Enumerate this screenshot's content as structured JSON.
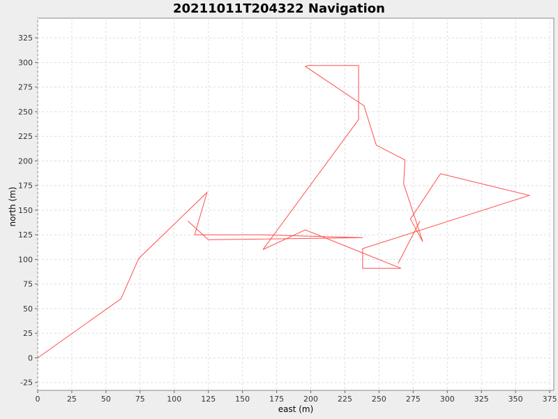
{
  "chart_data": {
    "type": "line",
    "title": "20211011T204322 Navigation",
    "xlabel": "east (m)",
    "ylabel": "north (m)",
    "xlim": [
      0,
      378
    ],
    "ylim": [
      -33,
      345
    ],
    "xticks": [
      0,
      25,
      50,
      75,
      100,
      125,
      150,
      175,
      200,
      225,
      250,
      275,
      300,
      325,
      350,
      375
    ],
    "yticks": [
      -25,
      0,
      25,
      50,
      75,
      100,
      125,
      150,
      175,
      200,
      225,
      250,
      275,
      300,
      325
    ],
    "grid": true,
    "series": [
      {
        "color": "#ff4d4d",
        "x": [
          0,
          61,
          74,
          124,
          115,
          163,
          238,
          125,
          110
        ],
        "y": [
          0,
          60,
          101,
          168,
          125,
          125,
          122,
          120,
          139
        ]
      },
      {
        "color": "#ff4d4d",
        "x": [
          165,
          235,
          235,
          198,
          196,
          239,
          248,
          269,
          268,
          282,
          273,
          295,
          360,
          238,
          238,
          266,
          196,
          165
        ],
        "y": [
          110,
          242,
          297,
          297,
          296,
          256,
          216,
          201,
          177,
          118,
          141,
          187,
          165,
          111,
          91,
          91,
          130,
          110
        ]
      },
      {
        "color": "#ff4d4d",
        "x": [
          280,
          264
        ],
        "y": [
          139,
          96
        ]
      }
    ]
  }
}
